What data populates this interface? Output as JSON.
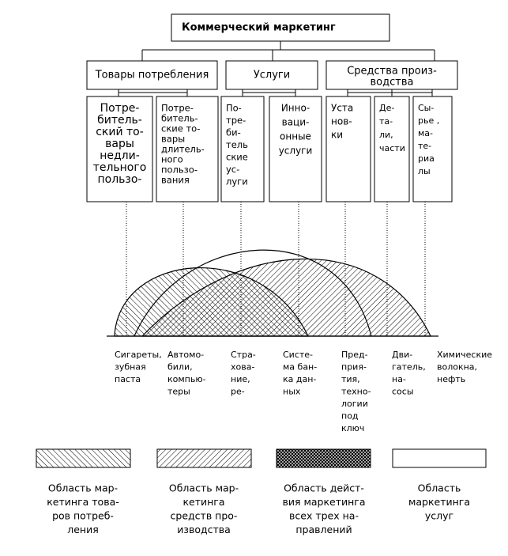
{
  "title": "Коммерческий маркетинг",
  "categories": [
    {
      "lines": [
        "Товары потребления"
      ]
    },
    {
      "lines": [
        "Услуги"
      ]
    },
    {
      "lines": [
        "Средства произ-",
        "водства"
      ]
    }
  ],
  "subcategories": [
    {
      "lines": [
        "Потре-",
        "битель-",
        "ский то-",
        "вары",
        "недли-",
        "тельного",
        "пользо-"
      ]
    },
    {
      "lines": [
        "Потре-",
        "битель-",
        "ские то-",
        "вары",
        "длитель-",
        "ного",
        "пользо-",
        "вания"
      ]
    },
    {
      "lines": [
        "По-",
        "тре-",
        "би-",
        "тель",
        "ские",
        "ус-",
        "луги"
      ]
    },
    {
      "lines": [
        "Инно-",
        "ваци-",
        "онные",
        "услуги"
      ]
    },
    {
      "lines": [
        "Уста",
        "нов-",
        "ки"
      ]
    },
    {
      "lines": [
        "Де-",
        "та-",
        "ли,",
        "части"
      ]
    },
    {
      "lines": [
        "Сы-",
        "рье ,",
        "ма-",
        "те-",
        "риа",
        "лы"
      ]
    }
  ],
  "examples": [
    {
      "lines": [
        "Сигареты,",
        "зубная",
        "паста"
      ]
    },
    {
      "lines": [
        "Автомо-",
        "били,",
        "компью-",
        "теры"
      ]
    },
    {
      "lines": [
        "Стра-",
        "хова-",
        "ние,",
        "ре-"
      ]
    },
    {
      "lines": [
        "Систе-",
        "ма бан-",
        "ка дан-",
        "ных"
      ]
    },
    {
      "lines": [
        "Пред-",
        "прия-",
        "тия,",
        "техно-",
        "логии",
        "под",
        "ключ"
      ]
    },
    {
      "lines": [
        "Дви-",
        "гатель,",
        "на-",
        "сосы"
      ]
    },
    {
      "lines": [
        "Химические",
        "волокна,",
        "нефть"
      ]
    }
  ],
  "legend": [
    {
      "lines": [
        "Область мар-",
        "кетинга това-",
        "ров потреб-",
        "ления"
      ]
    },
    {
      "lines": [
        "Область мар-",
        "кетинга",
        "средств про-",
        "изводства"
      ]
    },
    {
      "lines": [
        "Область  дейст-",
        "вия маркетинга",
        "всех трех на-",
        "правлений"
      ]
    },
    {
      "lines": [
        "Область",
        "маркетинга",
        "услуг"
      ]
    }
  ]
}
